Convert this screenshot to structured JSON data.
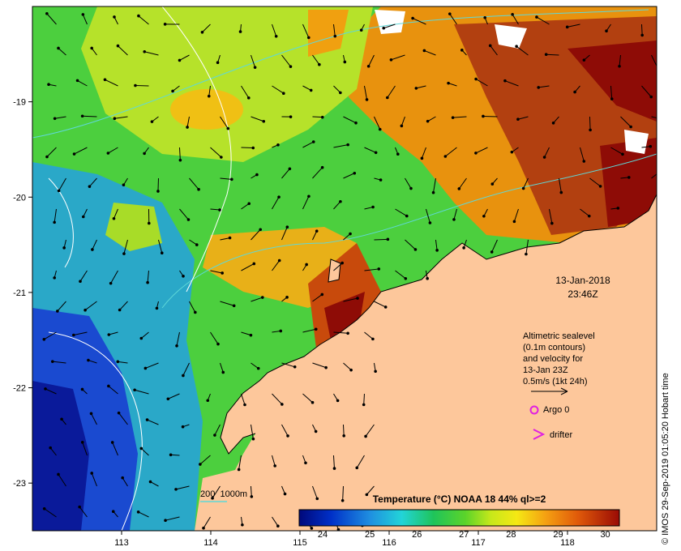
{
  "map": {
    "lon_range": [
      112.0,
      119.0
    ],
    "lat_range": [
      -23.5,
      -18.0
    ],
    "x_ticks": [
      "113",
      "114",
      "115",
      "116",
      "117",
      "118"
    ],
    "y_ticks": [
      "-19",
      "-20",
      "-21",
      "-22",
      "-23"
    ]
  },
  "annotations": {
    "date": "13-Jan-2018",
    "time": "23:46Z",
    "velocity_note": [
      "Altimetric sealevel",
      "(0.1m contours)",
      "and velocity for",
      "13-Jan 23Z",
      "0.5m/s (1kt 24h)"
    ],
    "argo": "Argo 0",
    "drifter": "drifter"
  },
  "colorbar": {
    "title": "Temperature (°C) NOAA 18 44% ql>=2",
    "ticks": [
      "24",
      "25",
      "26",
      "27",
      "28",
      "29",
      "30"
    ],
    "range": [
      23.5,
      30.3
    ]
  },
  "contour_legend": {
    "label": "200  1000m"
  },
  "credit": "© IMOS 29-Sep-2019 01:05:20 Hobart time",
  "colors": {
    "land": "#fdc79b",
    "bathymetry_contour": "#5fd8d8",
    "argo_marker": "#e020e0",
    "drifter_marker": "#e020e0"
  }
}
